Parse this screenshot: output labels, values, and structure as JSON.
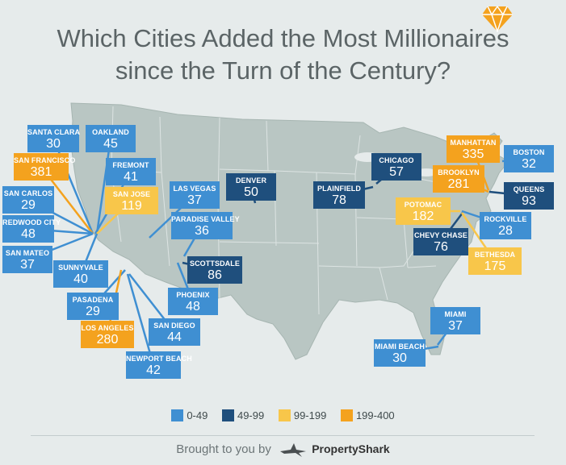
{
  "title_line1": "Which Cities Added the Most Millionaires",
  "title_line2": "since the Turn of the Century?",
  "chart_data": {
    "type": "map",
    "title": "Which Cities Added the Most Millionaires since the Turn of the Century?",
    "bins": [
      {
        "label": "0-49",
        "color": "#3f8fd2"
      },
      {
        "label": "49-99",
        "color": "#1f4f7d"
      },
      {
        "label": "99-199",
        "color": "#f8c64a"
      },
      {
        "label": "199-400",
        "color": "#f4a21e"
      }
    ],
    "cities": [
      {
        "name": "SANTA CLARA",
        "value": 30
      },
      {
        "name": "OAKLAND",
        "value": 45
      },
      {
        "name": "SAN FRANCISCO",
        "value": 381
      },
      {
        "name": "FREMONT",
        "value": 41
      },
      {
        "name": "SAN CARLOS",
        "value": 29
      },
      {
        "name": "SAN JOSE",
        "value": 119
      },
      {
        "name": "LAS VEGAS",
        "value": 37
      },
      {
        "name": "DENVER",
        "value": 50
      },
      {
        "name": "REDWOOD CITY",
        "value": 48
      },
      {
        "name": "PARADISE VALLEY",
        "value": 36
      },
      {
        "name": "SAN MATEO",
        "value": 37
      },
      {
        "name": "SCOTTSDALE",
        "value": 86
      },
      {
        "name": "SUNNYVALE",
        "value": 40
      },
      {
        "name": "PHOENIX",
        "value": 48
      },
      {
        "name": "PASADENA",
        "value": 29
      },
      {
        "name": "LOS ANGELES",
        "value": 280
      },
      {
        "name": "SAN DIEGO",
        "value": 44
      },
      {
        "name": "NEWPORT BEACH",
        "value": 42
      },
      {
        "name": "CHICAGO",
        "value": 57
      },
      {
        "name": "PLAINFIELD",
        "value": 78
      },
      {
        "name": "MANHATTAN",
        "value": 335
      },
      {
        "name": "BOSTON",
        "value": 32
      },
      {
        "name": "BROOKLYN",
        "value": 281
      },
      {
        "name": "QUEENS",
        "value": 93
      },
      {
        "name": "POTOMAC",
        "value": 182
      },
      {
        "name": "ROCKVILLE",
        "value": 28
      },
      {
        "name": "CHEVY CHASE",
        "value": 76
      },
      {
        "name": "BETHESDA",
        "value": 175
      },
      {
        "name": "MIAMI",
        "value": 37
      },
      {
        "name": "MIAMI BEACH",
        "value": 30
      }
    ]
  },
  "footer": {
    "prefix": "Brought to you by",
    "brand": "PropertyShark"
  }
}
